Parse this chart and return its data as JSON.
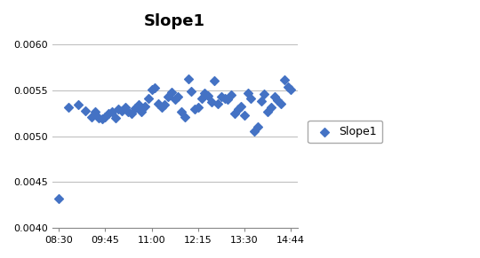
{
  "title": "Slope1",
  "legend_label": "Slope1",
  "marker_color": "#4472C4",
  "marker": "D",
  "marker_size": 5,
  "ylim": [
    0.004,
    0.0061
  ],
  "yticks": [
    0.004,
    0.0045,
    0.005,
    0.0055,
    0.006
  ],
  "xtick_labels": [
    "08:30",
    "09:45",
    "11:00",
    "12:15",
    "13:30",
    "14:44"
  ],
  "background_color": "#ffffff",
  "grid_color": "#c0c0c0",
  "x_values": [
    0,
    3,
    6,
    8,
    10,
    11,
    12,
    13,
    14,
    15,
    16,
    17,
    18,
    19,
    20,
    21,
    22,
    23,
    24,
    25,
    26,
    27,
    28,
    29,
    30,
    31,
    32,
    33,
    34,
    35,
    36,
    37,
    38,
    39,
    40,
    41,
    42,
    43,
    44,
    45,
    46,
    47,
    48,
    49,
    50,
    51,
    52,
    53,
    54,
    55,
    56,
    57,
    58,
    59,
    60,
    61,
    62,
    63,
    64,
    65,
    66,
    67,
    68,
    69,
    70
  ],
  "y_values": [
    0.00432,
    0.00532,
    0.00535,
    0.00528,
    0.00521,
    0.00527,
    0.0052,
    0.00519,
    0.00521,
    0.00525,
    0.00527,
    0.0052,
    0.0053,
    0.00528,
    0.00532,
    0.00527,
    0.00525,
    0.00531,
    0.00535,
    0.00527,
    0.00533,
    0.00541,
    0.00551,
    0.00553,
    0.00536,
    0.00532,
    0.00535,
    0.00543,
    0.00548,
    0.0054,
    0.00543,
    0.00527,
    0.00521,
    0.00563,
    0.00549,
    0.0053,
    0.00532,
    0.00541,
    0.00547,
    0.00544,
    0.00537,
    0.00561,
    0.00536,
    0.00543,
    0.00541,
    0.0054,
    0.00545,
    0.00525,
    0.0053,
    0.00533,
    0.00523,
    0.00547,
    0.00541,
    0.00506,
    0.0051,
    0.00538,
    0.00546,
    0.00527,
    0.00532,
    0.00543,
    0.00539,
    0.00536,
    0.00562,
    0.00554,
    0.00551
  ]
}
